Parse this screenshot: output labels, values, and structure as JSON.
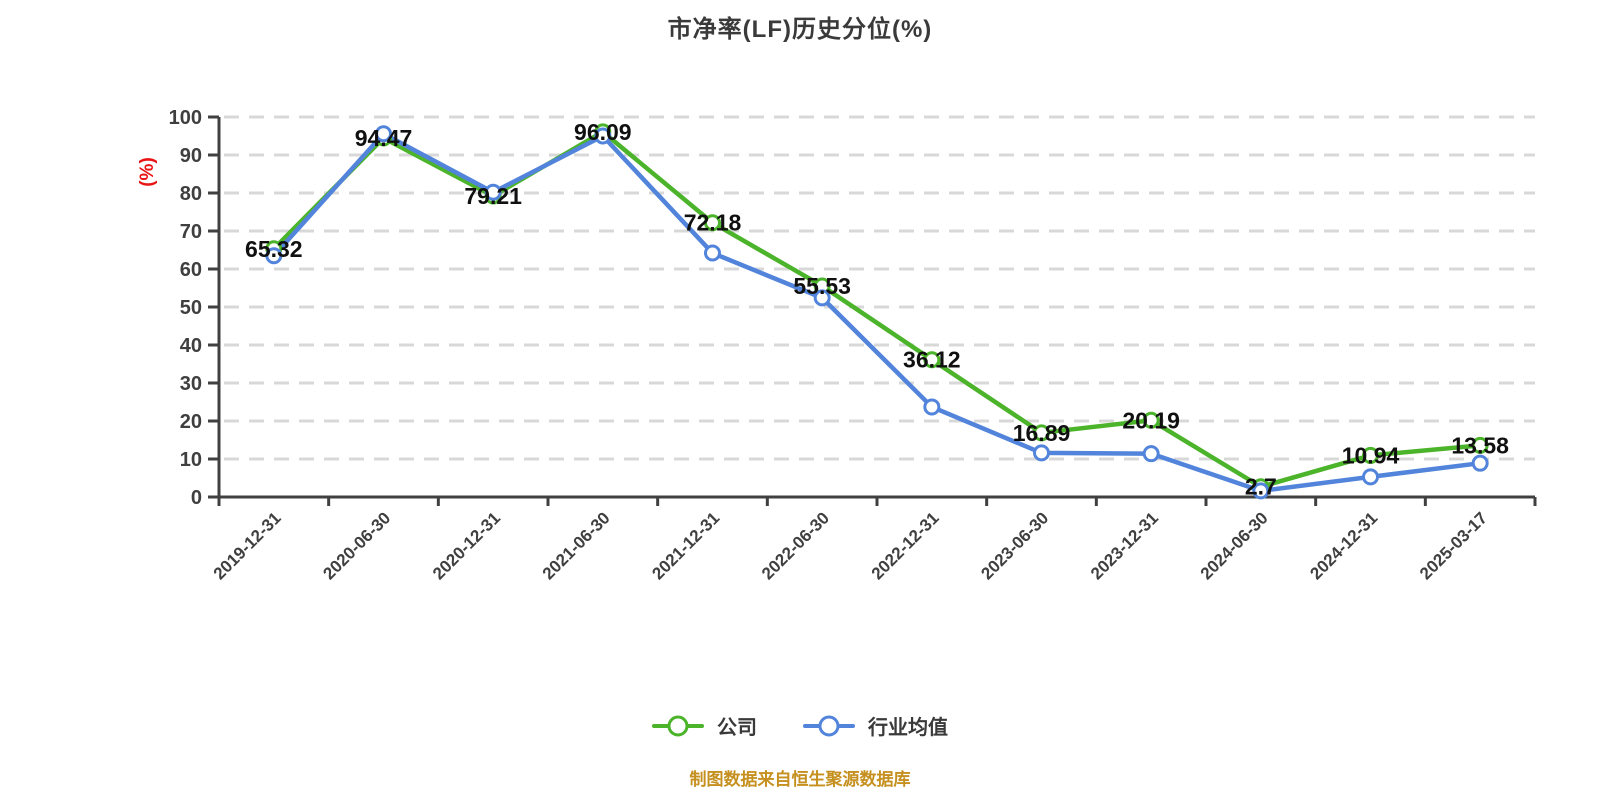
{
  "title": "市净率(LF)历史分位(%)",
  "source_note": "制图数据来自恒生聚源数据库",
  "colors": {
    "company": "#4bb42a",
    "industry": "#5284db",
    "grid": "#d8d8d8",
    "axis": "#404040",
    "tick_text": "#3f3f3f",
    "title_text": "#3a3a3a",
    "data_label": "#101010",
    "unit_label": "#e81414",
    "source_note_text": "#c5901f",
    "marker_fill": "#ffffff"
  },
  "chart_data": {
    "type": "line",
    "title": "市净率(LF)历史分位(%)",
    "xlabel": "",
    "ylabel": "(%)",
    "ylim": [
      0,
      100
    ],
    "y_ticks": [
      0,
      10,
      20,
      30,
      40,
      50,
      60,
      70,
      80,
      90,
      100
    ],
    "grid": "horizontal-dashed",
    "legend_position": "bottom",
    "categories": [
      "2019-12-31",
      "2020-06-30",
      "2020-12-31",
      "2021-06-30",
      "2021-12-31",
      "2022-06-30",
      "2022-12-31",
      "2023-06-30",
      "2023-12-31",
      "2024-06-30",
      "2024-12-31",
      "2025-03-17"
    ],
    "series": [
      {
        "name": "公司",
        "color": "#4bb42a",
        "labeled": true,
        "values": [
          65.32,
          94.47,
          79.21,
          96.09,
          72.18,
          55.53,
          36.12,
          16.89,
          20.19,
          2.7,
          10.94,
          13.58
        ],
        "labels": [
          "65.32",
          "94.47",
          "79.21",
          "96.09",
          "72.18",
          "55.53",
          "36.12",
          "16.89",
          "20.19",
          "2.7",
          "10.94",
          "13.58"
        ]
      },
      {
        "name": "行业均值",
        "color": "#5284db",
        "labeled": false,
        "values": [
          63.5,
          95.6,
          80.2,
          95.0,
          64.2,
          52.4,
          23.7,
          11.6,
          11.4,
          1.6,
          5.3,
          8.9
        ]
      }
    ]
  }
}
